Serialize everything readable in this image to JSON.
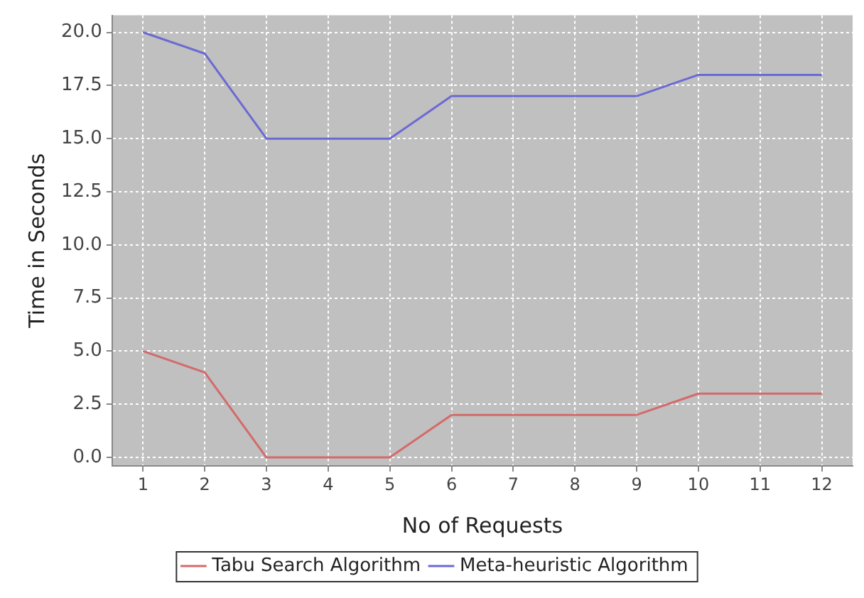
{
  "chart_data": {
    "type": "line",
    "xlabel": "No of Requests",
    "ylabel": "Time in Seconds",
    "categories": [
      "1",
      "2",
      "3",
      "4",
      "5",
      "6",
      "7",
      "8",
      "9",
      "10",
      "11",
      "12"
    ],
    "series": [
      {
        "name": "Tabu Search Algorithm",
        "color": "#d46a6a",
        "values": [
          5,
          4,
          0,
          0,
          0,
          2,
          2,
          2,
          2,
          3,
          3,
          3
        ]
      },
      {
        "name": "Meta-heuristic Algorithm",
        "color": "#6a6ad4",
        "values": [
          20,
          19,
          15,
          15,
          15,
          17,
          17,
          17,
          17,
          18,
          18,
          18
        ]
      }
    ],
    "ylim": [
      -0.4,
      20.8
    ],
    "yticks": [
      {
        "value": 0,
        "label": "0.0"
      },
      {
        "value": 2.5,
        "label": "2.5"
      },
      {
        "value": 5,
        "label": "5.0"
      },
      {
        "value": 7.5,
        "label": "7.5"
      },
      {
        "value": 10,
        "label": "10.0"
      },
      {
        "value": 12.5,
        "label": "12.5"
      },
      {
        "value": 15,
        "label": "15.0"
      },
      {
        "value": 17.5,
        "label": "17.5"
      },
      {
        "value": 20,
        "label": "20.0"
      }
    ],
    "grid": true,
    "legend": "bottom",
    "marker": "none",
    "line_style": "solid"
  }
}
